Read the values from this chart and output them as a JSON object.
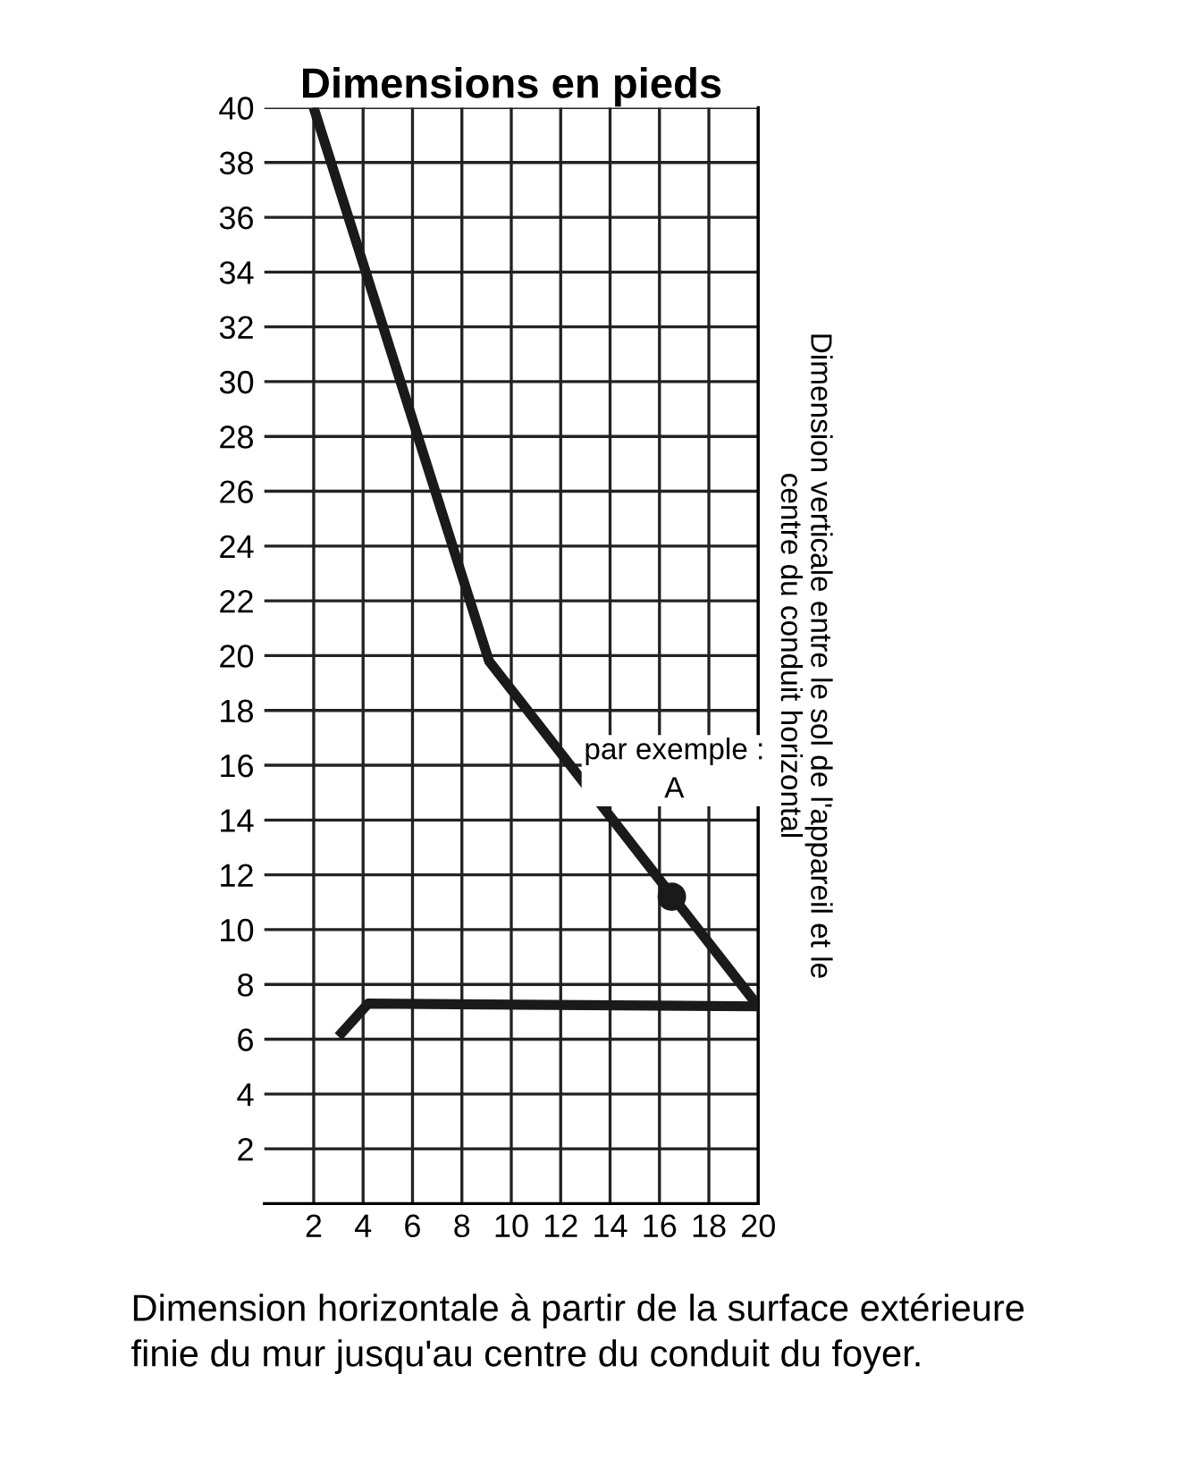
{
  "chart_data": {
    "type": "line",
    "title": "Dimensions en pieds",
    "ylabel": "Dimension verticale entre le sol de l'appareil et le\ncentre du conduit horizontal",
    "xlabel": "Dimension horizontale à partir de la surface extérieure\nfinie du mur jusqu'au centre du conduit du foyer.",
    "series": [
      {
        "color": "#1a1a1a",
        "x": [
          2,
          9.1,
          20
        ],
        "values": [
          40,
          19.8,
          7.2
        ]
      },
      {
        "color": "#1a1a1a",
        "x": [
          3,
          4.2,
          20
        ],
        "values": [
          6.1,
          7.3,
          7.2
        ]
      },
      {
        "type": "scatter",
        "color": "#1a1a1a",
        "marker": "circle",
        "x": [
          16.5
        ],
        "values": [
          11.2
        ]
      }
    ],
    "annotations": [
      "par exemple :\nA"
    ],
    "xlim": [
      0,
      20
    ],
    "ylim": [
      0,
      40
    ],
    "xticks": [
      2,
      4,
      6,
      8,
      10,
      12,
      14,
      16,
      18,
      20
    ],
    "yticks": [
      2,
      4,
      6,
      8,
      10,
      12,
      14,
      16,
      18,
      20,
      22,
      24,
      26,
      28,
      30,
      32,
      34,
      36,
      38,
      40
    ],
    "grid": true,
    "line_style": "solid"
  }
}
